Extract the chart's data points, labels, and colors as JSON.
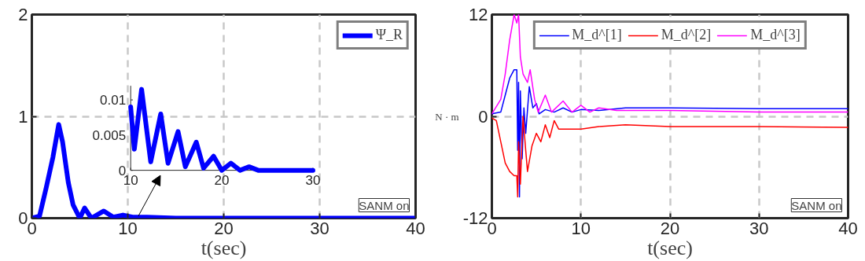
{
  "chart_data": [
    {
      "type": "line",
      "xlabel": "t(sec)",
      "xlim": [
        0,
        40
      ],
      "ylim": [
        0,
        2
      ],
      "xticks": [
        0,
        10,
        20,
        30,
        40
      ],
      "yticks": [
        0,
        1,
        2
      ],
      "grid": true,
      "legend": "top right",
      "annotations": [
        "SANM on"
      ],
      "series": [
        {
          "name": "Ψ_R",
          "color": "#0000ff",
          "x": [
            0,
            0.8,
            1.5,
            2.2,
            2.8,
            3.2,
            3.8,
            4.3,
            5,
            5.5,
            6.2,
            7.5,
            8.5,
            9.5,
            10.5,
            12,
            15,
            20,
            30,
            40
          ],
          "values": [
            0,
            0.02,
            0.3,
            0.6,
            0.92,
            0.75,
            0.35,
            0.13,
            0,
            0.1,
            0,
            0.07,
            0.01,
            0.03,
            0.01,
            0.01,
            0,
            0,
            0,
            0
          ]
        }
      ]
    },
    {
      "type": "line",
      "xlim": [
        10,
        30
      ],
      "ylim": [
        0,
        0.012
      ],
      "xticks": [
        10,
        20,
        30
      ],
      "yticks": [
        0,
        0.005,
        0.01
      ],
      "series": [
        {
          "color": "#0000ff",
          "x": [
            10,
            10.4,
            11.2,
            12.2,
            13.3,
            14.1,
            15.2,
            16,
            17.2,
            18,
            19.1,
            20,
            21,
            22,
            23,
            24,
            26,
            30
          ],
          "values": [
            0.009,
            0.003,
            0.0115,
            0.0012,
            0.008,
            0.001,
            0.0055,
            0.0005,
            0.004,
            0.0003,
            0.002,
            0,
            0.001,
            0,
            0.0005,
            0,
            0,
            0
          ]
        }
      ]
    },
    {
      "type": "line",
      "xlabel": "t(sec)",
      "ylabel": "N · m",
      "xlim": [
        0,
        40
      ],
      "ylim": [
        -12,
        12
      ],
      "xticks": [
        0,
        10,
        20,
        30,
        40
      ],
      "yticks": [
        -12,
        0,
        12
      ],
      "grid": true,
      "legend": "top",
      "annotations": [
        "SANM on"
      ],
      "series": [
        {
          "name": "M_d^[1]",
          "color": "#0000ff",
          "x": [
            0,
            1,
            1.5,
            2,
            2.5,
            2.8,
            2.9,
            3,
            3.1,
            3.2,
            3.4,
            3.6,
            3.8,
            4.2,
            4.6,
            5,
            5.3,
            6,
            7,
            8,
            9,
            10,
            12,
            15,
            20,
            30,
            40
          ],
          "values": [
            0.3,
            0.5,
            2.5,
            4.5,
            5.5,
            5.5,
            -4,
            4,
            -9.5,
            3,
            -5,
            1,
            -2,
            3.5,
            1,
            1.5,
            0.3,
            0.8,
            0.5,
            1,
            0.5,
            0.8,
            0.7,
            1,
            1,
            0.9,
            0.9
          ]
        },
        {
          "name": "M_d^[2]",
          "color": "#ff0000",
          "x": [
            0,
            0.5,
            1,
            1.5,
            2,
            2.5,
            2.8,
            2.9,
            3,
            3.2,
            3.5,
            3.8,
            4,
            4.5,
            5,
            5.5,
            6,
            6.5,
            7,
            7.5,
            8,
            10,
            12,
            15,
            20,
            30,
            40
          ],
          "values": [
            -0.2,
            -0.5,
            -3,
            -5.5,
            -6.5,
            -7,
            -7,
            -9.5,
            -3,
            -8,
            0,
            -4,
            -6.5,
            -3.5,
            -2,
            -3,
            -1,
            -2.5,
            -0.5,
            -1.5,
            -1.5,
            -1.5,
            -1.2,
            -1,
            -1.2,
            -1.2,
            -1.3
          ]
        },
        {
          "name": "M_d^[3]",
          "color": "#ff00ff",
          "x": [
            0,
            1,
            1.5,
            2,
            2.5,
            2.8,
            3,
            3.2,
            3.5,
            4,
            4.3,
            4.8,
            5.2,
            6,
            6.7,
            8,
            9,
            10,
            11,
            12,
            14,
            20,
            30,
            40
          ],
          "values": [
            0.3,
            2,
            5,
            9,
            12,
            11,
            12,
            7,
            5,
            4,
            5.5,
            2,
            0.5,
            2.5,
            0.5,
            1.8,
            0.5,
            1.3,
            0.5,
            1,
            0.7,
            0.7,
            0.5,
            0.5
          ]
        }
      ]
    }
  ]
}
